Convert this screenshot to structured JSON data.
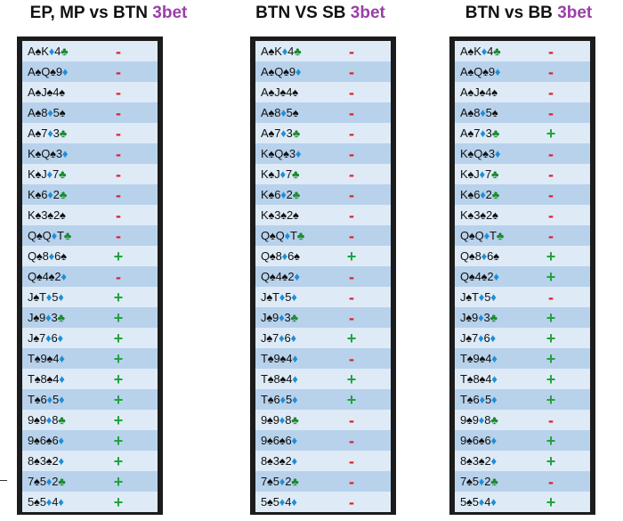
{
  "colors": {
    "highlight": "#9b3fa8",
    "plus": "#1fa33a",
    "minus": "#e0202a",
    "spade": "#111111",
    "diamond": "#1e8fd8",
    "club": "#1b8a2e"
  },
  "panels": [
    {
      "title_main": "EP, MP vs BTN ",
      "title_highlight": "3bet",
      "rows": [
        {
          "hand": "A♠K♦4♣",
          "mark": "-"
        },
        {
          "hand": "A♠Q♠9♦",
          "mark": "-"
        },
        {
          "hand": "A♠J♠4♠",
          "mark": "-"
        },
        {
          "hand": "A♠8♦5♠",
          "mark": "-"
        },
        {
          "hand": "A♠7♦3♣",
          "mark": "-"
        },
        {
          "hand": "K♠Q♠3♦",
          "mark": "-"
        },
        {
          "hand": "K♠J♦7♣",
          "mark": "-"
        },
        {
          "hand": "K♠6♦2♣",
          "mark": "-"
        },
        {
          "hand": "K♠3♠2♠",
          "mark": "-"
        },
        {
          "hand": "Q♠Q♦T♣",
          "mark": "-"
        },
        {
          "hand": "Q♠8♦6♠",
          "mark": "+"
        },
        {
          "hand": "Q♠4♠2♦",
          "mark": "-"
        },
        {
          "hand": "J♠T♦5♦",
          "mark": "+"
        },
        {
          "hand": "J♠9♦3♣",
          "mark": "+"
        },
        {
          "hand": "J♠7♦6♦",
          "mark": "+"
        },
        {
          "hand": "T♠9♠4♦",
          "mark": "+"
        },
        {
          "hand": "T♠8♠4♦",
          "mark": "+"
        },
        {
          "hand": "T♠6♦5♦",
          "mark": "+"
        },
        {
          "hand": "9♠9♦8♣",
          "mark": "+"
        },
        {
          "hand": "9♠6♠6♦",
          "mark": "+"
        },
        {
          "hand": "8♠3♠2♦",
          "mark": "+"
        },
        {
          "hand": "7♠5♦2♣",
          "mark": "+"
        },
        {
          "hand": "5♠5♦4♦",
          "mark": "+"
        }
      ]
    },
    {
      "title_main": "BTN VS SB ",
      "title_highlight": "3bet",
      "rows": [
        {
          "hand": "A♠K♦4♣",
          "mark": "-"
        },
        {
          "hand": "A♠Q♠9♦",
          "mark": "-"
        },
        {
          "hand": "A♠J♠4♠",
          "mark": "-"
        },
        {
          "hand": "A♠8♦5♠",
          "mark": "-"
        },
        {
          "hand": "A♠7♦3♣",
          "mark": "-"
        },
        {
          "hand": "K♠Q♠3♦",
          "mark": "-"
        },
        {
          "hand": "K♠J♦7♣",
          "mark": "-"
        },
        {
          "hand": "K♠6♦2♣",
          "mark": "-"
        },
        {
          "hand": "K♠3♠2♠",
          "mark": "-"
        },
        {
          "hand": "Q♠Q♦T♣",
          "mark": "-"
        },
        {
          "hand": "Q♠8♦6♠",
          "mark": "+"
        },
        {
          "hand": "Q♠4♠2♦",
          "mark": "-"
        },
        {
          "hand": "J♠T♦5♦",
          "mark": "-"
        },
        {
          "hand": "J♠9♦3♣",
          "mark": "-"
        },
        {
          "hand": "J♠7♦6♦",
          "mark": "+"
        },
        {
          "hand": "T♠9♠4♦",
          "mark": "-"
        },
        {
          "hand": "T♠8♠4♦",
          "mark": "+"
        },
        {
          "hand": "T♠6♦5♦",
          "mark": "+"
        },
        {
          "hand": "9♠9♦8♣",
          "mark": "-"
        },
        {
          "hand": "9♠6♠6♦",
          "mark": "-"
        },
        {
          "hand": "8♠3♠2♦",
          "mark": "-"
        },
        {
          "hand": "7♠5♦2♣",
          "mark": "-"
        },
        {
          "hand": "5♠5♦4♦",
          "mark": "-"
        }
      ]
    },
    {
      "title_main": "BTN vs BB ",
      "title_highlight": "3bet",
      "rows": [
        {
          "hand": "A♠K♦4♣",
          "mark": "-"
        },
        {
          "hand": "A♠Q♠9♦",
          "mark": "-"
        },
        {
          "hand": "A♠J♠4♠",
          "mark": "-"
        },
        {
          "hand": "A♠8♦5♠",
          "mark": "-"
        },
        {
          "hand": "A♠7♦3♣",
          "mark": "+"
        },
        {
          "hand": "K♠Q♠3♦",
          "mark": "-"
        },
        {
          "hand": "K♠J♦7♣",
          "mark": "-"
        },
        {
          "hand": "K♠6♦2♣",
          "mark": "-"
        },
        {
          "hand": "K♠3♠2♠",
          "mark": "-"
        },
        {
          "hand": "Q♠Q♦T♣",
          "mark": "-"
        },
        {
          "hand": "Q♠8♦6♠",
          "mark": "+"
        },
        {
          "hand": "Q♠4♠2♦",
          "mark": "+"
        },
        {
          "hand": "J♠T♦5♦",
          "mark": "-"
        },
        {
          "hand": "J♠9♦3♣",
          "mark": "+"
        },
        {
          "hand": "J♠7♦6♦",
          "mark": "+"
        },
        {
          "hand": "T♠9♠4♦",
          "mark": "+"
        },
        {
          "hand": "T♠8♠4♦",
          "mark": "+"
        },
        {
          "hand": "T♠6♦5♦",
          "mark": "+"
        },
        {
          "hand": "9♠9♦8♣",
          "mark": "-"
        },
        {
          "hand": "9♠6♠6♦",
          "mark": "+"
        },
        {
          "hand": "8♠3♠2♦",
          "mark": "+"
        },
        {
          "hand": "7♠5♦2♣",
          "mark": "-"
        },
        {
          "hand": "5♠5♦4♦",
          "mark": "+"
        }
      ]
    }
  ]
}
